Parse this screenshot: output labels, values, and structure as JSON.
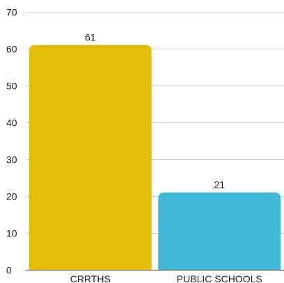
{
  "chart_data": {
    "type": "bar",
    "categories": [
      "CRRTHS",
      "PUBLIC SCHOOLS"
    ],
    "values": [
      61,
      21
    ],
    "colors": [
      "#e2be0a",
      "#41b8d5"
    ],
    "ylim": [
      0,
      70
    ],
    "yticks": [
      0,
      10,
      20,
      30,
      40,
      50,
      60,
      70
    ],
    "data_labels": [
      "61",
      "21"
    ],
    "title": "",
    "xlabel": "",
    "ylabel": "",
    "grid": true,
    "legend": "none"
  }
}
